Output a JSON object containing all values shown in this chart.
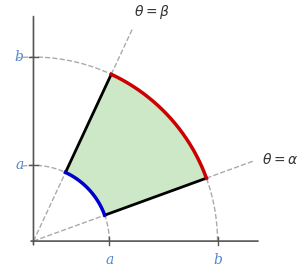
{
  "a": 0.35,
  "b": 0.85,
  "alpha_deg": 20,
  "beta_deg": 65,
  "fill_color": "#c8e6c0",
  "fill_alpha": 0.9,
  "inner_arc_color": "#0000cc",
  "outer_arc_color": "#cc0000",
  "inner_arc_lw": 2.5,
  "outer_arc_lw": 2.5,
  "radial_line_color": "#000000",
  "radial_line_lw": 2.0,
  "dashed_color": "#aaaaaa",
  "dashed_lw": 1.0,
  "axis_color": "#555555",
  "axis_lw": 1.2,
  "label_color": "#5588cc",
  "label_a": "a",
  "label_b": "b",
  "label_theta_alpha": "$\\theta = \\alpha$",
  "label_theta_beta": "$\\theta = \\beta$",
  "label_fontsize": 10,
  "theta_label_fontsize": 10,
  "bg_color": "#ffffff",
  "xlim": [
    -0.08,
    1.05
  ],
  "ylim": [
    -0.1,
    1.05
  ],
  "figsize": [
    3.0,
    2.7
  ],
  "dpi": 100
}
